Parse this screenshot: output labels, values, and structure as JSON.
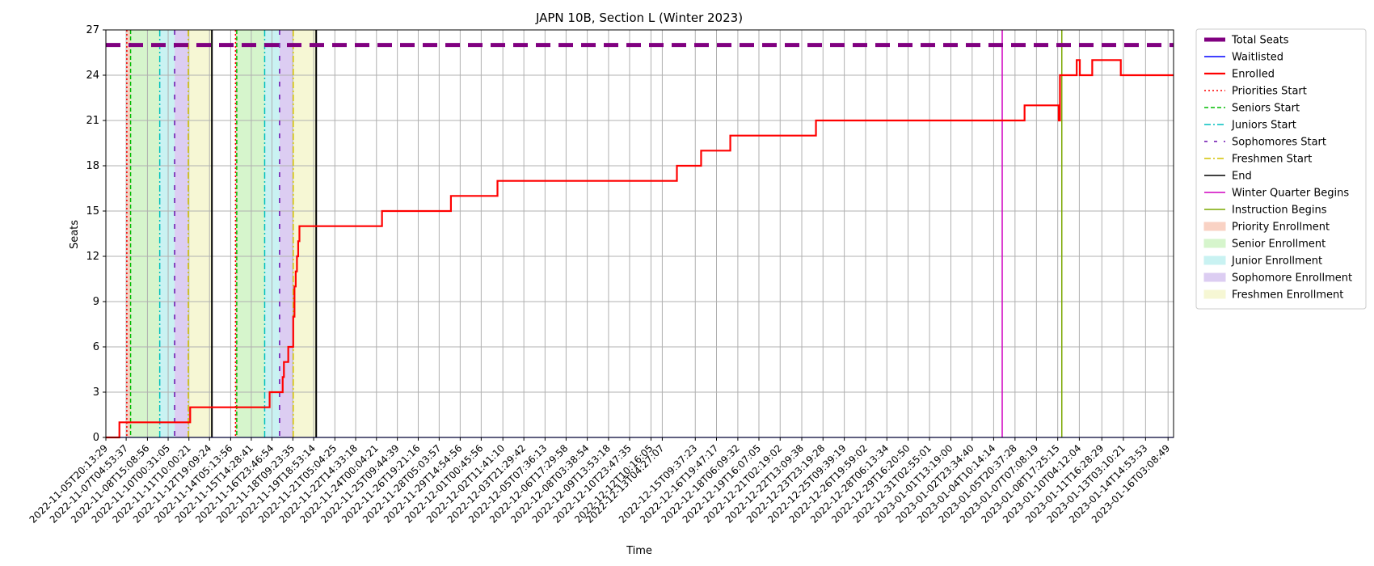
{
  "chart_data": {
    "type": "line",
    "title": "JAPN 10B, Section L (Winter 2023)",
    "xlabel": "Time",
    "ylabel": "Seats",
    "ylim": [
      0,
      27
    ],
    "yticks": [
      0,
      3,
      6,
      9,
      12,
      15,
      18,
      21,
      24,
      27
    ],
    "grid": true,
    "legend_position": "outside-right",
    "xlim": [
      "2022-11-05T20:13:29",
      "2023-01-16T12:00:00"
    ],
    "xticks": [
      "2022-11-05T20:13:29",
      "2022-11-07T04:53:37",
      "2022-11-08T15:08:56",
      "2022-11-10T00:31:05",
      "2022-11-11T10:00:21",
      "2022-11-12T19:09:24",
      "2022-11-14T05:13:56",
      "2022-11-15T14:28:41",
      "2022-11-16T23:46:54",
      "2022-11-18T09:23:35",
      "2022-11-19T18:53:14",
      "2022-11-21T05:04:25",
      "2022-11-22T14:33:18",
      "2022-11-24T00:04:21",
      "2022-11-25T09:44:39",
      "2022-11-26T19:21:16",
      "2022-11-28T05:03:57",
      "2022-11-29T14:54:56",
      "2022-12-01T00:45:56",
      "2022-12-02T11:41:10",
      "2022-12-03T21:29:42",
      "2022-12-05T07:36:13",
      "2022-12-06T17:29:58",
      "2022-12-08T03:38:54",
      "2022-12-09T13:53:18",
      "2022-12-10T23:47:35",
      "2022-12-12T10:16:05",
      "2022-12-13T04:27:07",
      "2022-12-15T09:37:23",
      "2022-12-16T19:47:17",
      "2022-12-18T06:09:32",
      "2022-12-19T16:07:05",
      "2022-12-21T02:19:02",
      "2022-12-22T13:09:38",
      "2022-12-23T23:19:28",
      "2022-12-25T09:39:19",
      "2022-12-26T19:59:02",
      "2022-12-28T06:13:34",
      "2022-12-29T16:20:50",
      "2022-12-31T02:55:01",
      "2023-01-01T13:19:00",
      "2023-01-02T23:34:40",
      "2023-01-04T10:14:14",
      "2023-01-05T20:37:28",
      "2023-01-07T07:08:19",
      "2023-01-08T17:25:15",
      "2023-01-10T04:12:04",
      "2023-01-11T16:28:29",
      "2023-01-13T03:10:21",
      "2023-01-14T14:53:53",
      "2023-01-16T03:08:49"
    ],
    "series": [
      {
        "name": "Total Seats",
        "color": "#800080",
        "style": "dashed-thick",
        "points": [
          [
            "2022-11-05T20:13:29",
            26
          ],
          [
            "2023-01-16T12:00:00",
            26
          ]
        ]
      },
      {
        "name": "Waitlisted",
        "color": "#0000ff",
        "style": "solid",
        "points": [
          [
            "2022-11-05T20:13:29",
            0
          ],
          [
            "2023-01-16T12:00:00",
            0
          ]
        ]
      },
      {
        "name": "Enrolled",
        "color": "#ff0000",
        "style": "step",
        "points": [
          [
            "2022-11-05T20:13:29",
            0
          ],
          [
            "2022-11-06T18:00:00",
            1
          ],
          [
            "2022-11-11T12:00:00",
            2
          ],
          [
            "2022-11-16T20:00:00",
            3
          ],
          [
            "2022-11-17T17:00:00",
            4
          ],
          [
            "2022-11-17T19:00:00",
            5
          ],
          [
            "2022-11-18T02:00:00",
            6
          ],
          [
            "2022-11-18T10:00:00",
            8
          ],
          [
            "2022-11-18T12:00:00",
            10
          ],
          [
            "2022-11-18T14:00:00",
            11
          ],
          [
            "2022-11-18T16:00:00",
            12
          ],
          [
            "2022-11-18T18:00:00",
            13
          ],
          [
            "2022-11-18T20:00:00",
            14
          ],
          [
            "2022-11-24T09:00:00",
            15
          ],
          [
            "2022-11-29T00:00:00",
            16
          ],
          [
            "2022-12-02T03:00:00",
            17
          ],
          [
            "2022-12-14T04:00:00",
            18
          ],
          [
            "2022-12-15T19:00:00",
            19
          ],
          [
            "2022-12-17T18:00:00",
            20
          ],
          [
            "2022-12-23T12:00:00",
            21
          ],
          [
            "2023-01-06T12:00:00",
            22
          ],
          [
            "2023-01-08T19:00:00",
            21
          ],
          [
            "2023-01-08T21:00:00",
            24
          ],
          [
            "2023-01-10T00:00:00",
            25
          ],
          [
            "2023-01-10T05:00:00",
            24
          ],
          [
            "2023-01-11T01:00:00",
            25
          ],
          [
            "2023-01-12T23:00:00",
            24
          ],
          [
            "2023-01-16T12:00:00",
            24
          ]
        ]
      }
    ],
    "markers": [
      {
        "name": "Priorities Start",
        "color": "#ff0000",
        "style": "dotted",
        "dates": [
          "2022-11-07T06:00:00",
          "2022-11-14T13:00:00"
        ]
      },
      {
        "name": "Seniors Start",
        "color": "#00bb00",
        "style": "dashed",
        "dates": [
          "2022-11-07T12:00:00",
          "2022-11-14T15:00:00"
        ]
      },
      {
        "name": "Juniors Start",
        "color": "#00bfbf",
        "style": "dashdot",
        "dates": [
          "2022-11-09T11:00:00",
          "2022-11-16T12:00:00"
        ]
      },
      {
        "name": "Sophomores Start",
        "color": "#6a0dad",
        "style": "loosedash",
        "dates": [
          "2022-11-10T11:00:00",
          "2022-11-17T12:00:00"
        ]
      },
      {
        "name": "Freshmen Start",
        "color": "#d4c200",
        "style": "dashdot",
        "dates": [
          "2022-11-11T09:00:00",
          "2022-11-18T10:00:00"
        ]
      },
      {
        "name": "End",
        "color": "#000000",
        "style": "solid",
        "dates": [
          "2022-11-12T23:00:00",
          "2022-11-19T23:00:00"
        ]
      },
      {
        "name": "Winter Quarter Begins",
        "color": "#d000c0",
        "style": "solid",
        "dates": [
          "2023-01-05T00:00:00"
        ]
      },
      {
        "name": "Instruction Begins",
        "color": "#7aa800",
        "style": "solid",
        "dates": [
          "2023-01-09T00:00:00"
        ]
      }
    ],
    "regions": [
      {
        "name": "Priority Enrollment",
        "color": "#f9d2c4",
        "spans": [
          [
            "2022-11-07T06:00:00",
            "2022-11-07T12:00:00"
          ],
          [
            "2022-11-14T13:00:00",
            "2022-11-14T15:00:00"
          ]
        ]
      },
      {
        "name": "Senior Enrollment",
        "color": "#d6f5cc",
        "spans": [
          [
            "2022-11-07T12:00:00",
            "2022-11-09T11:00:00"
          ],
          [
            "2022-11-14T15:00:00",
            "2022-11-16T12:00:00"
          ]
        ]
      },
      {
        "name": "Junior Enrollment",
        "color": "#c9f2f2",
        "spans": [
          [
            "2022-11-09T11:00:00",
            "2022-11-10T11:00:00"
          ],
          [
            "2022-11-16T12:00:00",
            "2022-11-17T12:00:00"
          ]
        ]
      },
      {
        "name": "Sophomore Enrollment",
        "color": "#dccdf2",
        "spans": [
          [
            "2022-11-10T11:00:00",
            "2022-11-11T09:00:00"
          ],
          [
            "2022-11-17T12:00:00",
            "2022-11-18T10:00:00"
          ]
        ]
      },
      {
        "name": "Freshmen Enrollment",
        "color": "#f6f7d4",
        "spans": [
          [
            "2022-11-11T09:00:00",
            "2022-11-12T23:00:00"
          ],
          [
            "2022-11-18T10:00:00",
            "2022-11-19T23:00:00"
          ]
        ]
      }
    ],
    "legend": [
      "Total Seats",
      "Waitlisted",
      "Enrolled",
      "Priorities Start",
      "Seniors Start",
      "Juniors Start",
      "Sophomores Start",
      "Freshmen Start",
      "End",
      "Winter Quarter Begins",
      "Instruction Begins",
      "Priority Enrollment",
      "Senior Enrollment",
      "Junior Enrollment",
      "Sophomore Enrollment",
      "Freshmen Enrollment"
    ]
  }
}
